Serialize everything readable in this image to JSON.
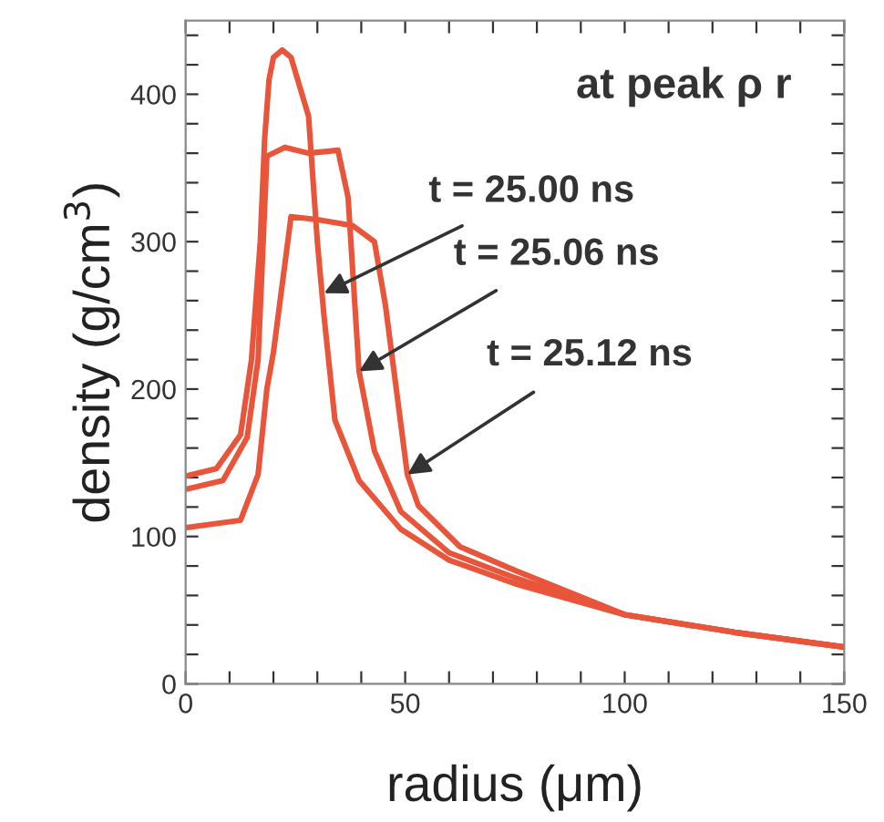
{
  "chart_data": {
    "type": "line",
    "xlabel": "radius (μm)",
    "ylabel": "density (g/cm$^{3}$)",
    "xlim": [
      0,
      150
    ],
    "ylim": [
      0,
      450
    ],
    "xticks": [
      0,
      {
        "value": 10,
        "label": null
      },
      {
        "value": 20,
        "label": null
      },
      {
        "value": 30,
        "label": null
      },
      {
        "value": 40,
        "label": null
      },
      50,
      {
        "value": 60,
        "label": null
      },
      {
        "value": 70,
        "label": null
      },
      {
        "value": 80,
        "label": null
      },
      {
        "value": 90,
        "label": null
      },
      100,
      {
        "value": 110,
        "label": null
      },
      {
        "value": 120,
        "label": null
      },
      {
        "value": 130,
        "label": null
      },
      {
        "value": 140,
        "label": null
      },
      150
    ],
    "yticks": [
      0,
      {
        "value": 20,
        "label": null
      },
      {
        "value": 40,
        "label": null
      },
      {
        "value": 60,
        "label": null
      },
      {
        "value": 80,
        "label": null
      },
      100,
      {
        "value": 120,
        "label": null
      },
      {
        "value": 140,
        "label": null
      },
      {
        "value": 160,
        "label": null
      },
      {
        "value": 180,
        "label": null
      },
      200,
      {
        "value": 220,
        "label": null
      },
      {
        "value": 240,
        "label": null
      },
      {
        "value": 260,
        "label": null
      },
      {
        "value": 280,
        "label": null
      },
      300,
      {
        "value": 320,
        "label": null
      },
      {
        "value": 340,
        "label": null
      },
      {
        "value": 360,
        "label": null
      },
      {
        "value": 380,
        "label": null
      },
      400,
      {
        "value": 420,
        "label": null
      },
      {
        "value": 440,
        "label": null
      }
    ],
    "grid": false,
    "legend": false,
    "marker": "none",
    "line_style": "solid",
    "series": [
      {
        "color": "#e8553a",
        "x": [
          0,
          7,
          12.5,
          15,
          17,
          18,
          19,
          20,
          22,
          24,
          28,
          30,
          31.5,
          34,
          39.5,
          49,
          60,
          75,
          100,
          125,
          150
        ],
        "values": [
          141,
          146,
          169,
          220,
          300,
          370,
          410,
          425,
          430,
          425,
          385,
          300,
          250,
          179,
          138,
          105,
          84,
          68,
          47,
          35,
          25
        ]
      },
      {
        "color": "#e8553a",
        "x": [
          0,
          8.5,
          14,
          16.5,
          18.5,
          22.6,
          28,
          34.7,
          37,
          39.5,
          43,
          49,
          60,
          75,
          100,
          125,
          150
        ],
        "values": [
          132,
          138,
          167,
          220,
          358,
          364,
          360,
          362,
          330,
          212,
          158,
          117,
          89,
          72,
          47,
          35,
          25
        ]
      },
      {
        "color": "#e8553a",
        "x": [
          0,
          12.5,
          16.5,
          18.5,
          20,
          24,
          30,
          38,
          43,
          45.5,
          50.5,
          53,
          62.5,
          75,
          100,
          125,
          150
        ],
        "values": [
          106,
          111,
          142,
          200,
          225,
          317,
          315,
          311,
          300,
          257,
          142,
          121,
          93,
          77,
          47,
          35,
          25
        ]
      }
    ],
    "annotations": [
      "at peak ρ r",
      {
        "text": "t = 25.00 ns",
        "x": 31.5,
        "y": 265
      },
      {
        "text": "t = 25.06 ns",
        "x": 39.5,
        "y": 212
      },
      {
        "text": "t = 25.12 ns",
        "x": 50.5,
        "y": 142
      }
    ]
  }
}
